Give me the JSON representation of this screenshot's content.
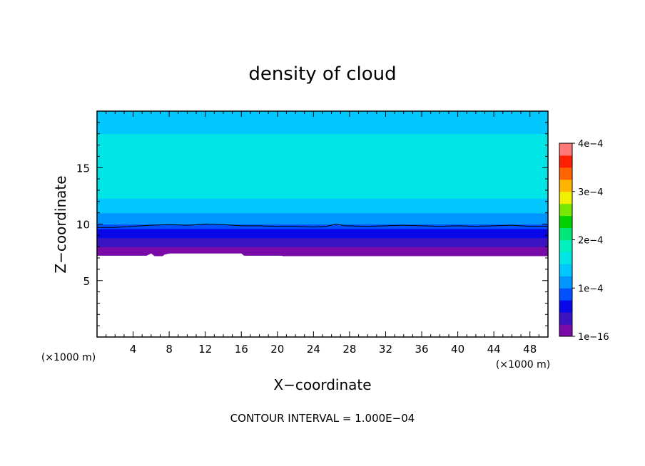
{
  "chart_data": {
    "type": "heatmap",
    "title": "density of cloud",
    "xlabel": "X−coordinate",
    "ylabel": "Z−coordinate",
    "x_unit": "(×1000 m)",
    "xlim": [
      0,
      50
    ],
    "ylim": [
      0,
      20
    ],
    "x_ticks": [
      4,
      8,
      12,
      16,
      20,
      24,
      28,
      32,
      36,
      40,
      44,
      48
    ],
    "y_ticks": [
      5,
      10,
      15
    ],
    "grid": false,
    "colorbar": {
      "min": 0,
      "max": 0.0004,
      "tick_values": [
        0,
        0.0001,
        0.0002,
        0.0003,
        0.0004
      ],
      "tick_labels": [
        "1e−16",
        "1e−4",
        "2e−4",
        "3e−4",
        "4e−4"
      ],
      "colors": [
        "#7a0aa8",
        "#3a14c0",
        "#0808e8",
        "#0050ff",
        "#0096ff",
        "#00c8ff",
        "#00e6e6",
        "#00f0c0",
        "#00e678",
        "#00d200",
        "#78e600",
        "#f0f000",
        "#ffb400",
        "#ff6400",
        "#ff1e00",
        "#ff7878"
      ]
    },
    "profile_levels": {
      "z": [
        7.2,
        7.6,
        8.0,
        8.4,
        8.8,
        9.2,
        9.6,
        10.0,
        10.5,
        11.0,
        11.6,
        12.3,
        13.2,
        16.5,
        17.3,
        18.0,
        18.8,
        20.0
      ],
      "density": [
        5e-06,
        1.5e-05,
        3e-05,
        4.5e-05,
        6e-05,
        7.5e-05,
        9e-05,
        0.000105,
        0.000118,
        0.00013,
        0.000142,
        0.000153,
        0.000162,
        0.000168,
        0.00016,
        0.00015,
        0.00014,
        0.00013
      ]
    },
    "cloud_base": {
      "x": [
        0,
        5.5,
        6,
        6.8,
        7.5,
        8,
        16,
        16.3,
        20.5,
        21,
        23.5,
        24,
        25,
        25.5,
        37,
        37.6,
        38,
        38.8,
        39.4,
        40,
        40.8,
        41.2,
        50
      ],
      "z": [
        7.2,
        7.2,
        7.4,
        6.9,
        7.3,
        7.4,
        7.4,
        7.2,
        7.2,
        7.0,
        7.0,
        6.7,
        6.8,
        7.0,
        7.0,
        6.8,
        7.0,
        6.8,
        7.0,
        6.8,
        6.9,
        7.0,
        7.0
      ]
    },
    "contour_line": {
      "level": 0.0001,
      "x": [
        0,
        2,
        4,
        6,
        8,
        10,
        12,
        14,
        16,
        18,
        20,
        22,
        24,
        25.5,
        26.5,
        27.5,
        30,
        32,
        34,
        36,
        38,
        40,
        42,
        44,
        46,
        48,
        50
      ],
      "z": [
        9.7,
        9.7,
        9.8,
        9.9,
        9.95,
        9.9,
        10.0,
        9.95,
        9.85,
        9.85,
        9.8,
        9.8,
        9.75,
        9.8,
        10.0,
        9.85,
        9.8,
        9.85,
        9.9,
        9.85,
        9.8,
        9.85,
        9.8,
        9.85,
        9.9,
        9.8,
        9.8
      ]
    },
    "contour_interval_note": "CONTOUR INTERVAL = 1.000E−04"
  }
}
